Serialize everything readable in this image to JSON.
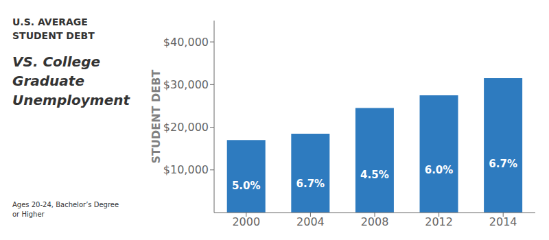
{
  "chart_data": {
    "type": "bar",
    "title": "U.S. AVERAGE\nSTUDENT DEBT",
    "subtitle": "VS. College\nGraduate\nUnemployment",
    "footnote": "Ages 20-24, Bachelor’s Degree\nor Higher",
    "ylabel": "STUDENT DEBT",
    "categories": [
      "2000",
      "2004",
      "2008",
      "2012",
      "2014"
    ],
    "values": [
      17000,
      18500,
      24500,
      27500,
      31500
    ],
    "annotations": [
      {
        "category": "2000",
        "text": "5.0%"
      },
      {
        "category": "2004",
        "text": "6.7%"
      },
      {
        "category": "2008",
        "text": "4.5%"
      },
      {
        "category": "2012",
        "text": "6.0%"
      },
      {
        "category": "2014",
        "text": "6.7%"
      }
    ],
    "color": "#2e7bbf",
    "ylim": [
      0,
      45000
    ],
    "yticks": [
      {
        "value": 10000,
        "label": "$10,000"
      },
      {
        "value": 20000,
        "label": "$20,000"
      },
      {
        "value": 30000,
        "label": "$30,000"
      },
      {
        "value": 40000,
        "label": "$40,000"
      }
    ],
    "grid": false
  }
}
